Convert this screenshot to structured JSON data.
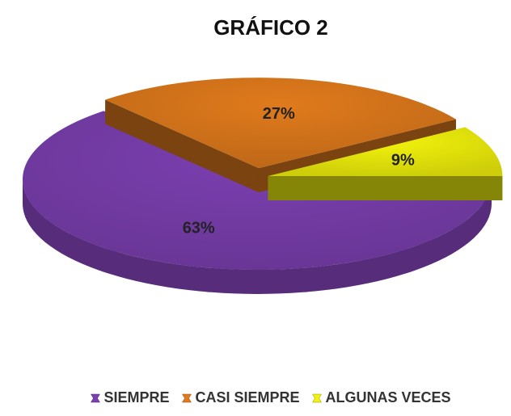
{
  "chart_data": {
    "type": "pie",
    "title": "GRÁFICO 2",
    "categories": [
      "SIEMPRE",
      "CASI SIEMPRE",
      "ALGUNAS VECES"
    ],
    "values": [
      63,
      27,
      9
    ],
    "value_labels": [
      "63%",
      "27%",
      "9%"
    ],
    "colors": [
      "#7b3fb0",
      "#e07a1c",
      "#f2f20c"
    ],
    "legend": "bottom"
  }
}
